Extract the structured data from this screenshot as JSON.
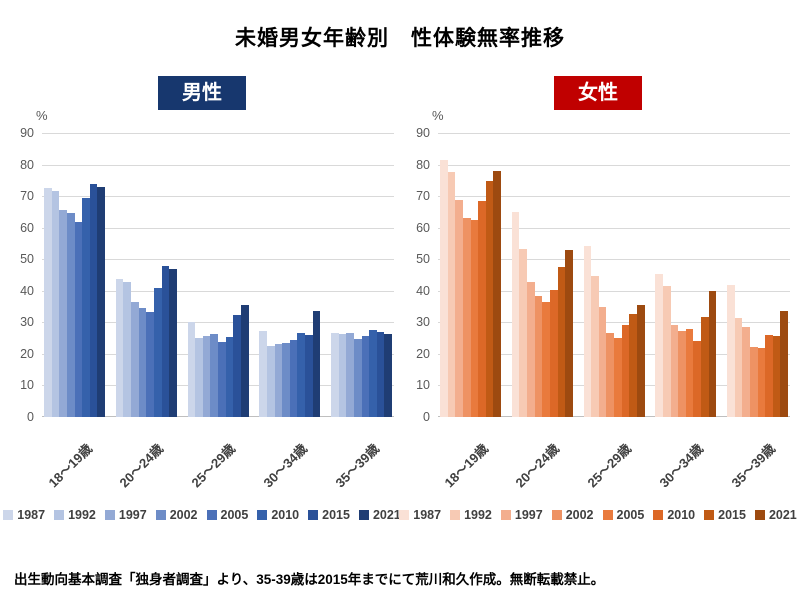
{
  "title": "未婚男女年齢別　性体験無率推移",
  "source_note": "出生動向基本調査「独身者調査」より、35-39歳は2015年までにて荒川和久作成。無断転載禁止。",
  "percent_label": "%",
  "y_ticks": [
    90,
    80,
    70,
    60,
    50,
    40,
    30,
    20,
    10,
    0
  ],
  "years": [
    "1987",
    "1992",
    "1997",
    "2002",
    "2005",
    "2010",
    "2015",
    "2021"
  ],
  "categories": [
    "18〜19歳",
    "20〜24歳",
    "25〜29歳",
    "30〜34歳",
    "35〜39歳"
  ],
  "chart_data": [
    {
      "type": "bar",
      "title": "男性",
      "header_bg": "#17376e",
      "ylabel": "%",
      "ylim": [
        0,
        90
      ],
      "grid": true,
      "legend_position": "bottom",
      "categories": [
        "18〜19歳",
        "20〜24歳",
        "25〜29歳",
        "30〜34歳",
        "35〜39歳"
      ],
      "colors": [
        "#ccd6ea",
        "#b4c4e2",
        "#93a9d5",
        "#6d8cc7",
        "#4b70b8",
        "#3561ab",
        "#2a5199",
        "#1f3d74"
      ],
      "series": [
        {
          "name": "1987",
          "values": [
            72.5,
            43.6,
            30.2,
            27.3,
            26.7
          ]
        },
        {
          "name": "1992",
          "values": [
            71.5,
            42.8,
            25.1,
            22.5,
            26.2
          ]
        },
        {
          "name": "1997",
          "values": [
            65.5,
            36.5,
            25.6,
            23.0,
            26.5
          ]
        },
        {
          "name": "2002",
          "values": [
            64.8,
            34.7,
            26.2,
            23.3,
            24.6
          ]
        },
        {
          "name": "2005",
          "values": [
            61.8,
            33.3,
            23.8,
            24.4,
            25.7
          ]
        },
        {
          "name": "2010",
          "values": [
            69.4,
            40.9,
            25.4,
            26.5,
            27.6
          ]
        },
        {
          "name": "2015",
          "values": [
            73.8,
            47.8,
            32.3,
            26.0,
            26.8
          ]
        },
        {
          "name": "2021",
          "values": [
            73.0,
            46.8,
            35.6,
            33.6,
            26.2
          ]
        }
      ]
    },
    {
      "type": "bar",
      "title": "女性",
      "header_bg": "#c00000",
      "ylabel": "%",
      "ylim": [
        0,
        90
      ],
      "grid": true,
      "legend_position": "bottom",
      "categories": [
        "18〜19歳",
        "20〜24歳",
        "25〜29歳",
        "30〜34歳",
        "35〜39歳"
      ],
      "colors": [
        "#fae1d6",
        "#f7cab4",
        "#f3ae8e",
        "#ee9263",
        "#e97a3d",
        "#dc6827",
        "#c05a15",
        "#9d4a10"
      ],
      "series": [
        {
          "name": "1987",
          "values": [
            81.5,
            65.0,
            54.3,
            45.3,
            41.8
          ]
        },
        {
          "name": "1992",
          "values": [
            77.6,
            53.4,
            44.8,
            41.6,
            31.3
          ]
        },
        {
          "name": "1997",
          "values": [
            68.8,
            42.8,
            34.8,
            29.3,
            28.5
          ]
        },
        {
          "name": "2002",
          "values": [
            63.2,
            38.3,
            26.6,
            27.2,
            22.2
          ]
        },
        {
          "name": "2005",
          "values": [
            62.4,
            36.5,
            24.9,
            27.8,
            21.8
          ]
        },
        {
          "name": "2010",
          "values": [
            68.5,
            40.4,
            29.1,
            24.1,
            25.9
          ]
        },
        {
          "name": "2015",
          "values": [
            74.8,
            47.4,
            32.7,
            31.7,
            25.6
          ]
        },
        {
          "name": "2021",
          "values": [
            78.0,
            52.8,
            35.5,
            39.9,
            33.7
          ]
        }
      ]
    }
  ]
}
